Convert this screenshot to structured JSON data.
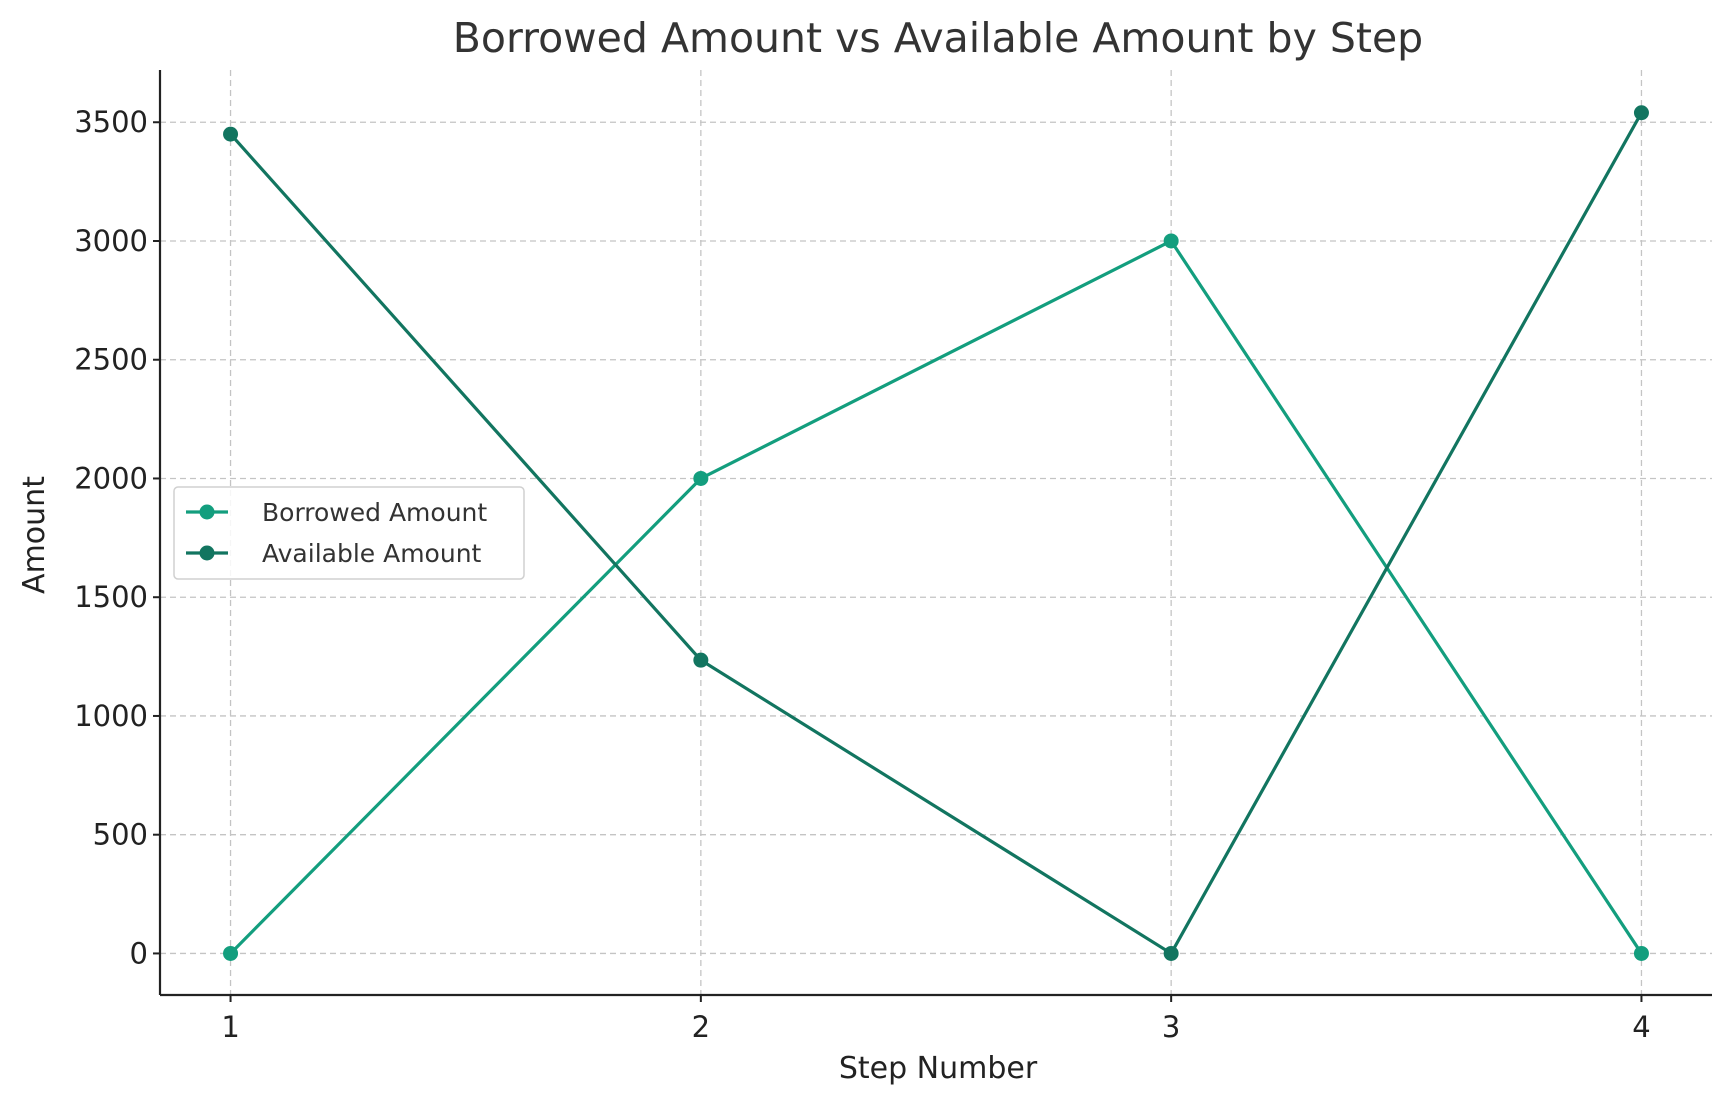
{
  "chart_data": {
    "type": "line",
    "title": "Borrowed Amount vs Available Amount by Step",
    "xlabel": "Step Number",
    "ylabel": "Amount",
    "x": [
      1,
      2,
      3,
      4
    ],
    "x_ticks": [
      "1",
      "2",
      "3",
      "4"
    ],
    "y_ticks": [
      0,
      500,
      1000,
      1500,
      2000,
      2500,
      3000,
      3500
    ],
    "xlim": [
      0.85,
      4.15
    ],
    "ylim": [
      -175,
      3720
    ],
    "grid": true,
    "legend_position": "center-left",
    "series": [
      {
        "name": "Borrowed Amount",
        "values": [
          0,
          2000,
          3000,
          0
        ],
        "color": "#139e7e",
        "marker": "circle"
      },
      {
        "name": "Available Amount",
        "values": [
          3450,
          1235,
          0,
          3540
        ],
        "color": "#127560",
        "marker": "circle"
      }
    ]
  }
}
